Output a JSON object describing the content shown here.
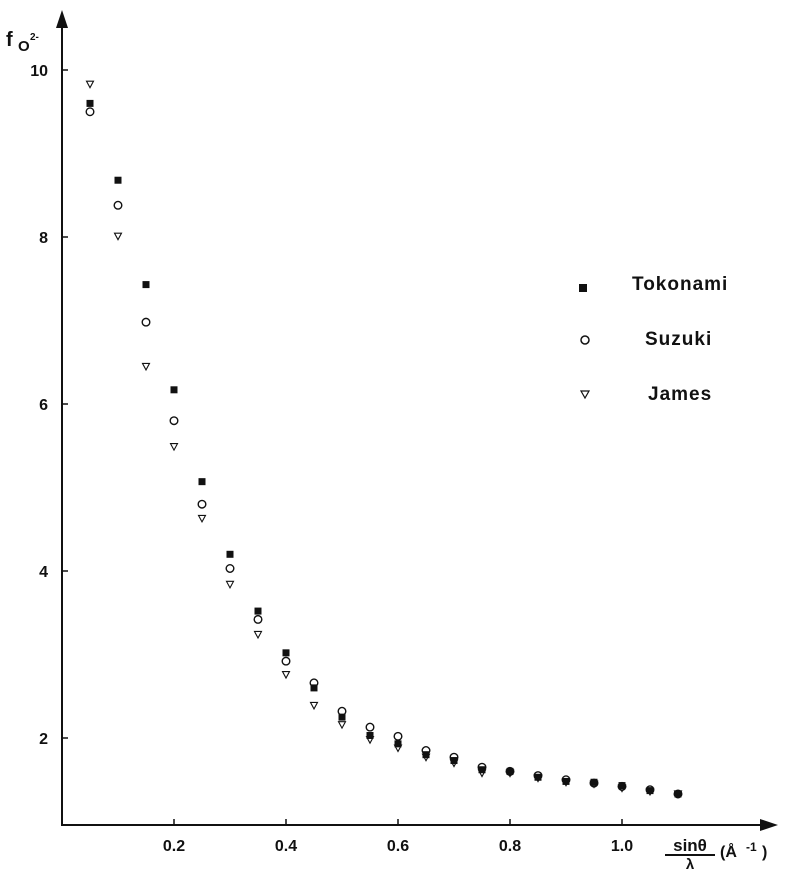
{
  "chart_data": {
    "type": "scatter",
    "ylabel": "f",
    "ylabel_sub": "O",
    "ylabel_sup": "2-",
    "xlabel_numerator": "sinθ",
    "xlabel_denominator": "λ",
    "xlabel_unit": "(Å",
    "xlabel_unit_exp": "-1",
    "xlabel_unit_close": ")",
    "xlim": [
      0,
      1.2
    ],
    "ylim": [
      1,
      11
    ],
    "xticks": [
      0.2,
      0.4,
      0.6,
      0.8,
      1.0
    ],
    "xtick_labels": [
      "0.2",
      "0.4",
      "0.6",
      "0.8",
      "1.0"
    ],
    "yticks": [
      2,
      4,
      6,
      8,
      10
    ],
    "ytick_labels": [
      "2",
      "4",
      "6",
      "8",
      "10"
    ],
    "grid": false,
    "legend_position": "right",
    "series": [
      {
        "name": "Tokonami",
        "marker": "filled-square",
        "x": [
          0.05,
          0.1,
          0.15,
          0.2,
          0.25,
          0.3,
          0.35,
          0.4,
          0.45,
          0.5,
          0.55,
          0.6,
          0.65,
          0.7,
          0.75,
          0.8,
          0.85,
          0.9,
          0.95,
          1.0,
          1.05,
          1.1
        ],
        "y": [
          9.6,
          8.68,
          7.43,
          6.17,
          5.07,
          4.2,
          3.52,
          3.02,
          2.6,
          2.25,
          2.03,
          1.93,
          1.8,
          1.73,
          1.62,
          1.6,
          1.53,
          1.48,
          1.47,
          1.43,
          1.37,
          1.33
        ]
      },
      {
        "name": "Suzuki",
        "marker": "open-circle",
        "x": [
          0.05,
          0.1,
          0.15,
          0.2,
          0.25,
          0.3,
          0.35,
          0.4,
          0.45,
          0.5,
          0.55,
          0.6,
          0.65,
          0.7,
          0.75,
          0.8,
          0.85,
          0.9,
          0.95,
          1.0,
          1.05,
          1.1
        ],
        "y": [
          9.5,
          8.38,
          6.98,
          5.8,
          4.8,
          4.03,
          3.42,
          2.92,
          2.66,
          2.32,
          2.13,
          2.02,
          1.85,
          1.77,
          1.65,
          1.6,
          1.55,
          1.5,
          1.46,
          1.42,
          1.38,
          1.33
        ]
      },
      {
        "name": "James",
        "marker": "open-triangle-down",
        "x": [
          0.05,
          0.1,
          0.15,
          0.2,
          0.25,
          0.3,
          0.35,
          0.4,
          0.45,
          0.5,
          0.55,
          0.6,
          0.65,
          0.7,
          0.75,
          0.8,
          0.85,
          0.9,
          0.95,
          1.0,
          1.05,
          1.1
        ],
        "y": [
          9.83,
          8.01,
          6.45,
          5.49,
          4.63,
          3.84,
          3.24,
          2.76,
          2.39,
          2.16,
          1.98,
          1.88,
          1.77,
          1.7,
          1.58,
          1.58,
          1.52,
          1.47,
          1.45,
          1.4,
          1.36,
          1.33
        ]
      }
    ]
  }
}
